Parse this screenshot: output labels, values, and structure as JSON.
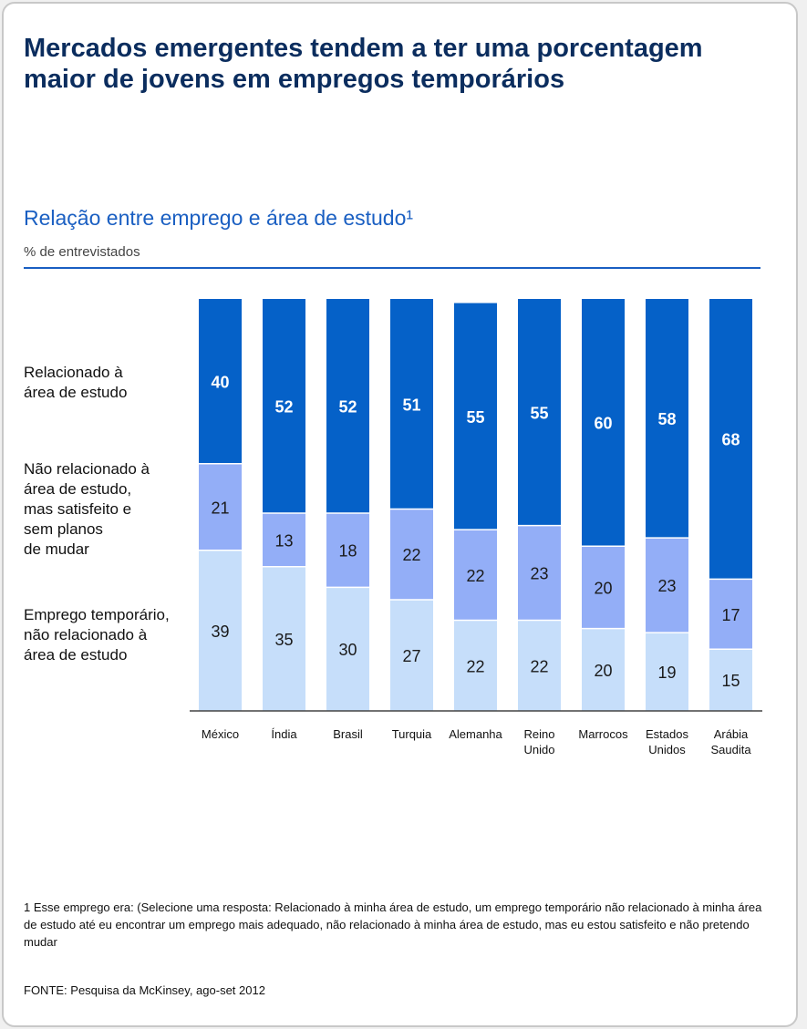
{
  "title": "Mercados emergentes tendem a ter uma porcentagem maior de jovens em empregos temporários",
  "chart_data": {
    "type": "bar",
    "stacked": true,
    "orientation": "vertical",
    "subtitle": "Relação entre emprego e área de estudo¹",
    "unit": "% de entrevistados",
    "categories": [
      "México",
      "Índia",
      "Brasil",
      "Turquia",
      "Alemanha",
      "Reino\nUnido",
      "Marrocos",
      "Estados\nUnidos",
      "Arábia\nSaudita"
    ],
    "series": [
      {
        "name": "Emprego temporário,\nnão relacionado à\nárea de estudo",
        "color": "#c6defa",
        "values": [
          39,
          35,
          30,
          27,
          22,
          22,
          20,
          19,
          15
        ]
      },
      {
        "name": "Não relacionado à\nárea de estudo,\nmas satisfeito e\nsem planos\nde mudar",
        "color": "#93aef7",
        "values": [
          21,
          13,
          18,
          22,
          22,
          23,
          20,
          23,
          17
        ]
      },
      {
        "name": "Relacionado à\nárea de estudo",
        "color": "#0561c8",
        "values": [
          40,
          52,
          52,
          51,
          55,
          55,
          60,
          58,
          68
        ]
      }
    ],
    "ylim": [
      0,
      100
    ],
    "grid": false,
    "legend": "left"
  },
  "footnote": "1 Esse emprego era: (Selecione uma resposta: Relacionado à minha área de estudo, um emprego temporário não relacionado à minha área de estudo até eu encontrar um emprego mais adequado, não relacionado à minha área de estudo, mas eu estou satisfeito e não pretendo mudar",
  "source": "FONTE: Pesquisa da McKinsey, ago-set 2012"
}
